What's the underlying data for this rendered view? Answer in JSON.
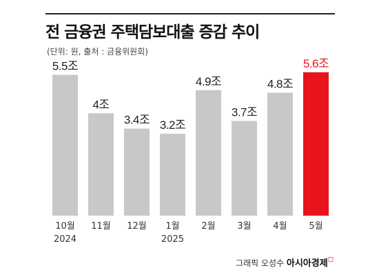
{
  "header": {
    "title": "전 금융권 주택담보대출 증감 추이",
    "subtitle": "(단위: 원, 출처 : 금융위원회)"
  },
  "chart_data": {
    "type": "bar",
    "title": "전 금융권 주택담보대출 증감 추이",
    "categories": [
      "10월",
      "11월",
      "12월",
      "1월",
      "2월",
      "3월",
      "4월",
      "5월"
    ],
    "category_years": [
      "2024",
      "",
      "",
      "2025",
      "",
      "",
      "",
      ""
    ],
    "values": [
      5.5,
      4.0,
      3.4,
      3.2,
      4.9,
      3.7,
      4.8,
      5.6
    ],
    "data_labels": [
      "5.5조",
      "4조",
      "3.4조",
      "3.2조",
      "4.9조",
      "3.7조",
      "4.8조",
      "5.6조"
    ],
    "ylim": [
      0,
      6
    ],
    "grid": false,
    "colors": {
      "bar": "#c8c8c8",
      "highlight": "#e8141c",
      "label": "#222222",
      "highlight_label": "#e8141c"
    },
    "highlight_index": 7
  },
  "footer": {
    "credit": "그래픽 오성수",
    "brand": "아시아경제"
  }
}
